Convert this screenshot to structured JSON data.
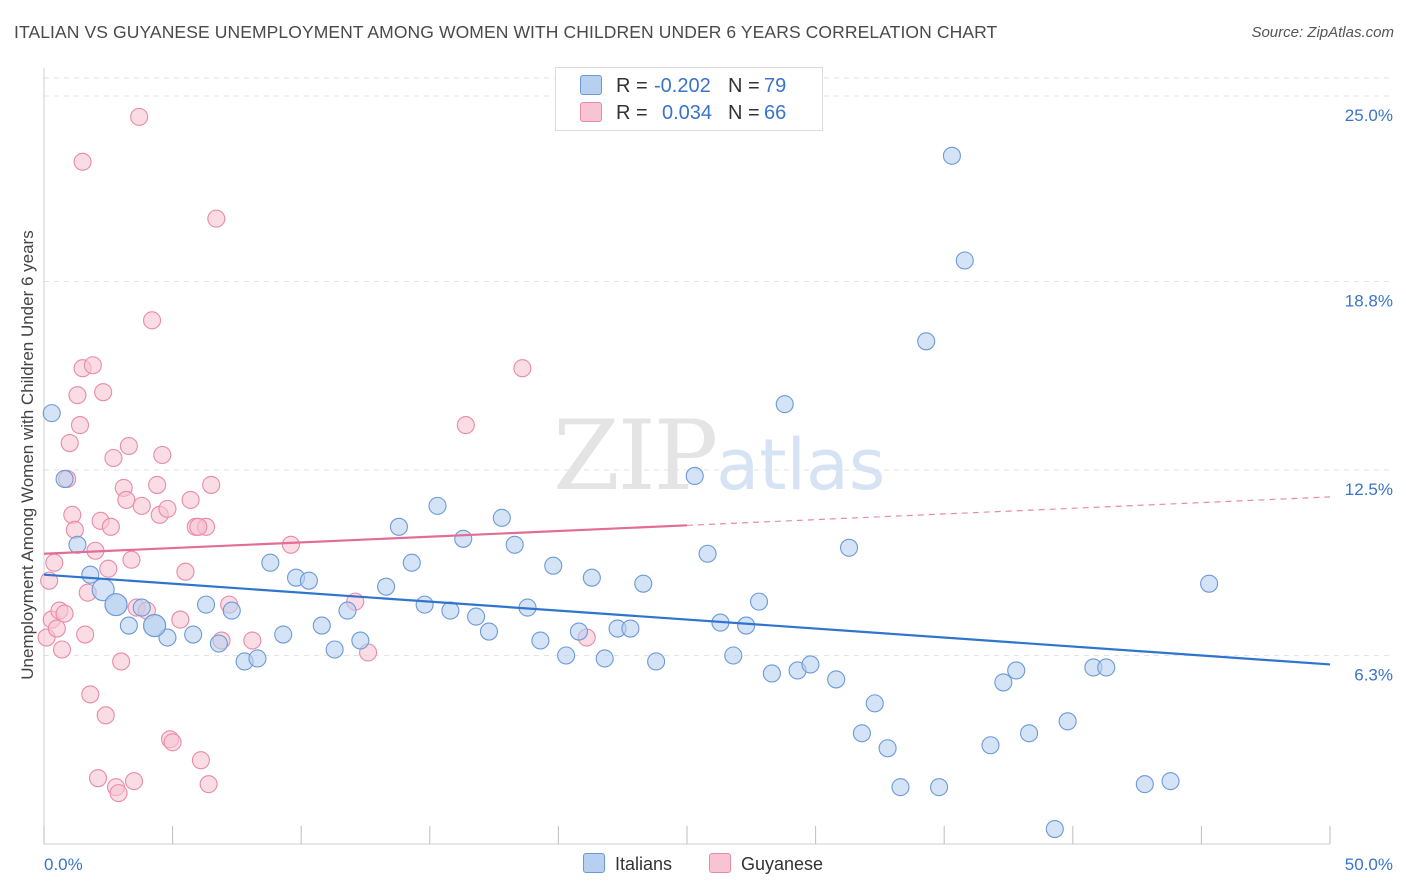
{
  "title": "ITALIAN VS GUYANESE UNEMPLOYMENT AMONG WOMEN WITH CHILDREN UNDER 6 YEARS CORRELATION CHART",
  "source": "Source: ZipAtlas.com",
  "watermark": {
    "zip": "ZIP",
    "atlas": "atlas"
  },
  "legend": {
    "italians": {
      "r_label": "R =",
      "r_value": "-0.202",
      "n_label": "N =",
      "n_value": "79"
    },
    "guyanese": {
      "r_label": "R =",
      "r_value": "0.034",
      "n_label": "N =",
      "n_value": "66"
    }
  },
  "bottom_legend": {
    "italians": "Italians",
    "guyanese": "Guyanese"
  },
  "colors": {
    "italians_fill": "#b8d0ef",
    "italians_stroke": "#6c9ad8",
    "italians_line": "#2f74cf",
    "guyanese_fill": "#f7c4d4",
    "guyanese_stroke": "#e98aa8",
    "guyanese_line": "#e36d94",
    "tick_text": "#3a74c9",
    "grid": "#e2e2e2"
  },
  "chart_data": {
    "type": "scatter",
    "title": "ITALIAN VS GUYANESE UNEMPLOYMENT AMONG WOMEN WITH CHILDREN UNDER 6 YEARS CORRELATION CHART",
    "xlabel": "",
    "ylabel": "Unemployment Among Women with Children Under 6 years",
    "xlim": [
      0,
      50
    ],
    "ylim": [
      0,
      25.8
    ],
    "x_tick_labels": [
      {
        "value": 0,
        "label": "0.0%"
      },
      {
        "value": 50,
        "label": "50.0%"
      }
    ],
    "y_ticks": [
      {
        "value": 6.3,
        "label": "6.3%"
      },
      {
        "value": 12.5,
        "label": "12.5%"
      },
      {
        "value": 18.8,
        "label": "18.8%"
      },
      {
        "value": 25.0,
        "label": "25.0%"
      }
    ],
    "series": [
      {
        "name": "Italians",
        "r": -0.202,
        "n": 79,
        "trend": {
          "x0": 0,
          "y0": 9.0,
          "x1": 50,
          "y1": 6.0,
          "solid_until": 50
        },
        "points": [
          [
            0.3,
            14.4
          ],
          [
            0.8,
            12.2
          ],
          [
            1.3,
            10.0
          ],
          [
            1.8,
            9.0
          ],
          [
            2.3,
            8.5
          ],
          [
            2.8,
            8.0
          ],
          [
            3.3,
            7.3
          ],
          [
            3.8,
            7.9
          ],
          [
            4.3,
            7.3
          ],
          [
            4.8,
            6.9
          ],
          [
            5.8,
            7.0
          ],
          [
            6.3,
            8.0
          ],
          [
            6.8,
            6.7
          ],
          [
            7.3,
            7.8
          ],
          [
            7.8,
            6.1
          ],
          [
            8.3,
            6.2
          ],
          [
            8.8,
            9.4
          ],
          [
            9.3,
            7.0
          ],
          [
            9.8,
            8.9
          ],
          [
            10.3,
            8.8
          ],
          [
            10.8,
            7.3
          ],
          [
            11.3,
            6.5
          ],
          [
            11.8,
            7.8
          ],
          [
            12.3,
            6.8
          ],
          [
            13.3,
            8.6
          ],
          [
            13.8,
            10.6
          ],
          [
            14.3,
            9.4
          ],
          [
            14.8,
            8.0
          ],
          [
            15.3,
            11.3
          ],
          [
            15.8,
            7.8
          ],
          [
            16.3,
            10.2
          ],
          [
            16.8,
            7.6
          ],
          [
            17.3,
            7.1
          ],
          [
            17.8,
            10.9
          ],
          [
            18.3,
            10.0
          ],
          [
            18.8,
            7.9
          ],
          [
            19.3,
            6.8
          ],
          [
            19.8,
            9.3
          ],
          [
            20.3,
            6.3
          ],
          [
            20.8,
            7.1
          ],
          [
            21.3,
            8.9
          ],
          [
            21.8,
            6.2
          ],
          [
            22.3,
            7.2
          ],
          [
            22.8,
            7.2
          ],
          [
            23.3,
            8.7
          ],
          [
            23.8,
            6.1
          ],
          [
            25.3,
            12.3
          ],
          [
            25.8,
            9.7
          ],
          [
            26.3,
            7.4
          ],
          [
            26.8,
            6.3
          ],
          [
            27.3,
            7.3
          ],
          [
            27.8,
            8.1
          ],
          [
            28.3,
            5.7
          ],
          [
            28.8,
            14.7
          ],
          [
            29.3,
            5.8
          ],
          [
            29.8,
            6.0
          ],
          [
            30.8,
            5.5
          ],
          [
            31.3,
            9.9
          ],
          [
            31.8,
            3.7
          ],
          [
            32.3,
            4.7
          ],
          [
            32.8,
            3.2
          ],
          [
            33.3,
            1.9
          ],
          [
            34.3,
            16.8
          ],
          [
            34.8,
            1.9
          ],
          [
            35.3,
            23.0
          ],
          [
            35.8,
            19.5
          ],
          [
            36.8,
            3.3
          ],
          [
            37.3,
            5.4
          ],
          [
            37.8,
            5.8
          ],
          [
            38.3,
            3.7
          ],
          [
            39.3,
            0.5
          ],
          [
            39.8,
            4.1
          ],
          [
            40.8,
            5.9
          ],
          [
            41.3,
            5.9
          ],
          [
            42.8,
            2.0
          ],
          [
            43.8,
            2.1
          ],
          [
            45.3,
            8.7
          ],
          [
            2.8,
            8.0
          ],
          [
            4.3,
            7.3
          ]
        ]
      },
      {
        "name": "Guyanese",
        "r": 0.034,
        "n": 66,
        "trend": {
          "x0": 0,
          "y0": 9.7,
          "x1": 50,
          "y1": 11.6,
          "solid_until": 25.0
        },
        "points": [
          [
            0.1,
            6.9
          ],
          [
            0.2,
            8.8
          ],
          [
            0.3,
            7.5
          ],
          [
            0.4,
            9.4
          ],
          [
            0.5,
            7.2
          ],
          [
            0.6,
            7.8
          ],
          [
            0.7,
            6.5
          ],
          [
            0.8,
            7.7
          ],
          [
            0.9,
            12.2
          ],
          [
            1.0,
            13.4
          ],
          [
            1.1,
            11.0
          ],
          [
            1.2,
            10.5
          ],
          [
            1.3,
            15.0
          ],
          [
            1.4,
            14.0
          ],
          [
            1.5,
            15.9
          ],
          [
            1.6,
            7.0
          ],
          [
            1.7,
            8.4
          ],
          [
            1.8,
            5.0
          ],
          [
            1.9,
            16.0
          ],
          [
            2.0,
            9.8
          ],
          [
            2.1,
            2.2
          ],
          [
            2.2,
            10.8
          ],
          [
            2.3,
            15.1
          ],
          [
            2.4,
            4.3
          ],
          [
            2.5,
            9.2
          ],
          [
            2.6,
            10.6
          ],
          [
            2.7,
            12.9
          ],
          [
            2.8,
            1.9
          ],
          [
            2.9,
            1.7
          ],
          [
            3.0,
            6.1
          ],
          [
            3.1,
            11.9
          ],
          [
            3.2,
            11.5
          ],
          [
            3.3,
            13.3
          ],
          [
            3.4,
            9.5
          ],
          [
            3.5,
            2.1
          ],
          [
            3.6,
            7.9
          ],
          [
            3.7,
            24.3
          ],
          [
            3.8,
            11.3
          ],
          [
            4.0,
            7.8
          ],
          [
            4.2,
            17.5
          ],
          [
            4.4,
            12.0
          ],
          [
            4.5,
            11.0
          ],
          [
            4.6,
            13.0
          ],
          [
            4.8,
            11.2
          ],
          [
            4.9,
            3.5
          ],
          [
            5.0,
            3.4
          ],
          [
            5.3,
            7.5
          ],
          [
            5.5,
            9.1
          ],
          [
            5.7,
            11.5
          ],
          [
            5.9,
            10.6
          ],
          [
            6.1,
            2.8
          ],
          [
            6.3,
            10.6
          ],
          [
            6.4,
            2.0
          ],
          [
            6.5,
            12.0
          ],
          [
            6.7,
            20.9
          ],
          [
            6.9,
            6.8
          ],
          [
            7.2,
            8.0
          ],
          [
            8.1,
            6.8
          ],
          [
            9.6,
            10.0
          ],
          [
            12.1,
            8.1
          ],
          [
            12.6,
            6.4
          ],
          [
            16.4,
            14.0
          ],
          [
            18.6,
            15.9
          ],
          [
            21.1,
            6.9
          ],
          [
            1.5,
            22.8
          ],
          [
            6.0,
            10.6
          ]
        ]
      }
    ]
  }
}
